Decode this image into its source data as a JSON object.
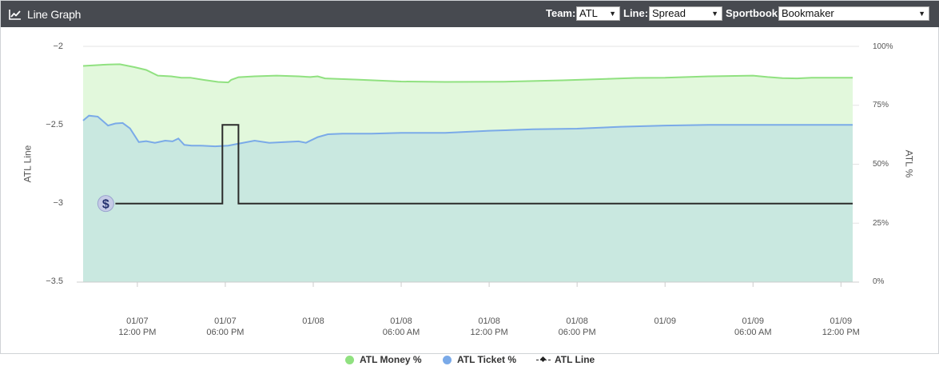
{
  "header": {
    "title": "Line Graph",
    "icon": "line-chart-icon",
    "controls": {
      "team_label": "Team:",
      "team_value": "ATL",
      "line_label": "Line:",
      "line_value": "Spread",
      "sportsbook_label": "Sportbook:",
      "sportsbook_value": "Bookmaker"
    }
  },
  "chart_data": {
    "type": "area",
    "ylabel_left": "ATL Line",
    "ylabel_right": "ATL %",
    "yticks_left": [
      "−2",
      "−2.5",
      "−3",
      "−3.5"
    ],
    "yticks_right": [
      "100%",
      "75%",
      "50%",
      "25%",
      "0%"
    ],
    "ylim_left": [
      -3.5,
      -2
    ],
    "ylim_right": [
      0,
      100
    ],
    "grid": true,
    "legend_position": "bottom",
    "xtick_labels": [
      [
        "01/07",
        "12:00 PM"
      ],
      [
        "01/07",
        "06:00 PM"
      ],
      [
        "01/08",
        ""
      ],
      [
        "01/08",
        "06:00 AM"
      ],
      [
        "01/08",
        "12:00 PM"
      ],
      [
        "01/08",
        "06:00 PM"
      ],
      [
        "01/09",
        ""
      ],
      [
        "01/09",
        "06:00 AM"
      ],
      [
        "01/09",
        "12:00 PM"
      ]
    ],
    "xtick_hours": [
      12,
      18,
      24,
      30,
      36,
      42,
      48,
      54,
      60
    ],
    "xlim_hours": [
      8.3,
      60.8
    ],
    "series": [
      {
        "name": "ATL Money %",
        "axis": "right",
        "color": "#90e180",
        "fill": "#e2f8dc",
        "points": [
          [
            8.3,
            91.7
          ],
          [
            10,
            92.3
          ],
          [
            10.8,
            92.4
          ],
          [
            11.8,
            91.2
          ],
          [
            12.6,
            90.0
          ],
          [
            13.4,
            87.6
          ],
          [
            14.3,
            87.3
          ],
          [
            15,
            86.7
          ],
          [
            15.6,
            86.7
          ],
          [
            16.5,
            85.8
          ],
          [
            17.5,
            84.9
          ],
          [
            18.2,
            84.7
          ],
          [
            18.4,
            85.8
          ],
          [
            18.9,
            86.9
          ],
          [
            20,
            87.3
          ],
          [
            21.5,
            87.6
          ],
          [
            23,
            87.3
          ],
          [
            23.8,
            87.0
          ],
          [
            24.3,
            87.3
          ],
          [
            24.8,
            86.4
          ],
          [
            27,
            85.9
          ],
          [
            30,
            85.1
          ],
          [
            33,
            84.9
          ],
          [
            37,
            85.0
          ],
          [
            41,
            85.6
          ],
          [
            44,
            86.2
          ],
          [
            46,
            86.6
          ],
          [
            48,
            86.7
          ],
          [
            51,
            87.3
          ],
          [
            54,
            87.6
          ],
          [
            55,
            87.0
          ],
          [
            56,
            86.5
          ],
          [
            57,
            86.4
          ],
          [
            58,
            86.7
          ],
          [
            60.8,
            86.7
          ]
        ]
      },
      {
        "name": "ATL Ticket %",
        "axis": "right",
        "color": "#7aaae8",
        "fill": "#c9e8e0",
        "points": [
          [
            8.3,
            68.5
          ],
          [
            8.7,
            70.6
          ],
          [
            9.3,
            70.2
          ],
          [
            10.0,
            66.4
          ],
          [
            10.5,
            67.3
          ],
          [
            11.0,
            67.5
          ],
          [
            11.5,
            65.2
          ],
          [
            12.1,
            59.4
          ],
          [
            12.6,
            59.8
          ],
          [
            13.2,
            59.1
          ],
          [
            13.9,
            60.0
          ],
          [
            14.4,
            59.7
          ],
          [
            14.8,
            60.9
          ],
          [
            15.2,
            58.2
          ],
          [
            15.7,
            57.9
          ],
          [
            16.3,
            57.9
          ],
          [
            17.3,
            57.6
          ],
          [
            18.2,
            57.9
          ],
          [
            18.8,
            58.6
          ],
          [
            20,
            60.0
          ],
          [
            21,
            59.1
          ],
          [
            23,
            59.7
          ],
          [
            23.5,
            59.1
          ],
          [
            24.3,
            61.5
          ],
          [
            25,
            62.7
          ],
          [
            26,
            63.0
          ],
          [
            28,
            63.0
          ],
          [
            30,
            63.3
          ],
          [
            33,
            63.3
          ],
          [
            36,
            64.2
          ],
          [
            39,
            64.8
          ],
          [
            42,
            65.1
          ],
          [
            45,
            65.9
          ],
          [
            48,
            66.4
          ],
          [
            51,
            66.7
          ],
          [
            54,
            66.7
          ],
          [
            57,
            66.7
          ],
          [
            60.8,
            66.7
          ]
        ]
      },
      {
        "name": "ATL Line",
        "axis": "left",
        "color": "#2b2b2b",
        "points": [
          [
            10.5,
            -3
          ],
          [
            17.8,
            -3
          ],
          [
            17.8,
            -2.5
          ],
          [
            18.9,
            -2.5
          ],
          [
            18.9,
            -3
          ],
          [
            60.8,
            -3
          ]
        ],
        "marker": {
          "x_hours": 10.5,
          "y": -3,
          "icon": "dollar-badge-icon",
          "symbol": "$"
        }
      }
    ]
  }
}
